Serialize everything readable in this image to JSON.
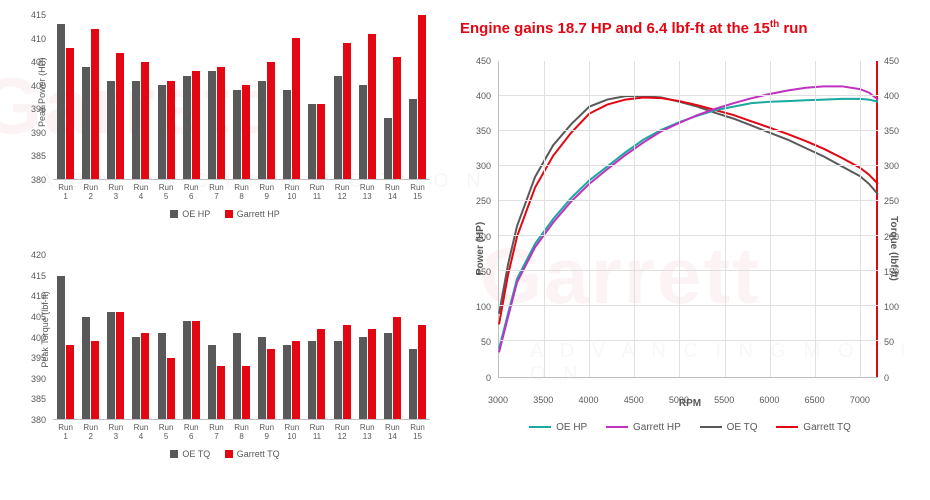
{
  "watermark_main": "Garrett",
  "watermark_sub": "A D V A N C I N G   M O T I O N",
  "headline_html": "Engine gains 18.7 HP and 6.4 lbf-ft at the 15<sup>th</sup> run",
  "colors": {
    "oe": "#595959",
    "garrett": "#e30613",
    "oe_hp_line": "#1aa9a0",
    "garrett_hp_line": "#c031c0",
    "oe_tq_line": "#595959",
    "garrett_tq_line": "#e30613",
    "grid": "#e0e0e0",
    "axis": "#bfbfbf"
  },
  "hp_chart": {
    "ylabel": "Peak Power (HP)",
    "ylim": [
      380,
      415
    ],
    "ystep": 5,
    "runs": [
      "Run 1",
      "Run 2",
      "Run 3",
      "Run 4",
      "Run 5",
      "Run 6",
      "Run 7",
      "Run 8",
      "Run 9",
      "Run 10",
      "Run 11",
      "Run 12",
      "Run 13",
      "Run 14",
      "Run 15"
    ],
    "oe": [
      413,
      404,
      401,
      401,
      400,
      402,
      403,
      399,
      401,
      399,
      396,
      402,
      400,
      393,
      397
    ],
    "garrett": [
      408,
      412,
      407,
      405,
      401,
      403,
      404,
      400,
      405,
      410,
      396,
      409,
      411,
      406,
      415
    ],
    "legend": [
      "OE HP",
      "Garrett HP"
    ]
  },
  "tq_chart": {
    "ylabel": "Peak Torque (lbf-ft)",
    "ylim": [
      380,
      420
    ],
    "ystep": 5,
    "runs": [
      "Run 1",
      "Run 2",
      "Run 3",
      "Run 4",
      "Run 5",
      "Run 6",
      "Run 7",
      "Run 8",
      "Run 9",
      "Run 10",
      "Run 11",
      "Run 12",
      "Run 13",
      "Run 14",
      "Run 15"
    ],
    "oe": [
      415,
      405,
      406,
      400,
      401,
      404,
      398,
      401,
      400,
      398,
      399,
      399,
      400,
      401,
      397
    ],
    "garrett": [
      398,
      399,
      406,
      401,
      395,
      404,
      393,
      393,
      397,
      399,
      402,
      403,
      402,
      405,
      403
    ],
    "legend": [
      "OE TQ",
      "Garrett TQ"
    ]
  },
  "line_chart": {
    "xlabel": "RPM",
    "ylabel": "Power (HP)",
    "y2label": "Torque (lbf-ft)",
    "xlim": [
      3000,
      7200
    ],
    "xstep": 500,
    "ylim": [
      0,
      450
    ],
    "ystep": 50,
    "y2lim": [
      0,
      450
    ],
    "y2step": 50,
    "rpm": [
      3000,
      3100,
      3200,
      3400,
      3600,
      3800,
      4000,
      4200,
      4400,
      4600,
      4800,
      5000,
      5200,
      5400,
      5600,
      5800,
      6000,
      6200,
      6400,
      6600,
      6800,
      7000,
      7100,
      7200
    ],
    "oe_hp": [
      40,
      90,
      140,
      190,
      225,
      255,
      280,
      300,
      320,
      338,
      352,
      363,
      372,
      380,
      385,
      390,
      392,
      393,
      394,
      395,
      396,
      396,
      395,
      392
    ],
    "garrett_hp": [
      35,
      85,
      135,
      185,
      220,
      250,
      275,
      296,
      316,
      334,
      350,
      362,
      373,
      382,
      390,
      397,
      403,
      408,
      412,
      414,
      414,
      410,
      405,
      395
    ],
    "oe_tq": [
      90,
      160,
      215,
      285,
      330,
      360,
      385,
      395,
      400,
      400,
      398,
      392,
      385,
      376,
      368,
      358,
      348,
      338,
      326,
      314,
      300,
      286,
      275,
      260
    ],
    "garrett_tq": [
      75,
      145,
      200,
      270,
      315,
      348,
      375,
      388,
      395,
      398,
      397,
      393,
      387,
      380,
      373,
      364,
      355,
      346,
      336,
      325,
      312,
      298,
      288,
      275
    ],
    "legend": [
      "OE HP",
      "Garrett HP",
      "OE TQ",
      "Garrett TQ"
    ]
  }
}
